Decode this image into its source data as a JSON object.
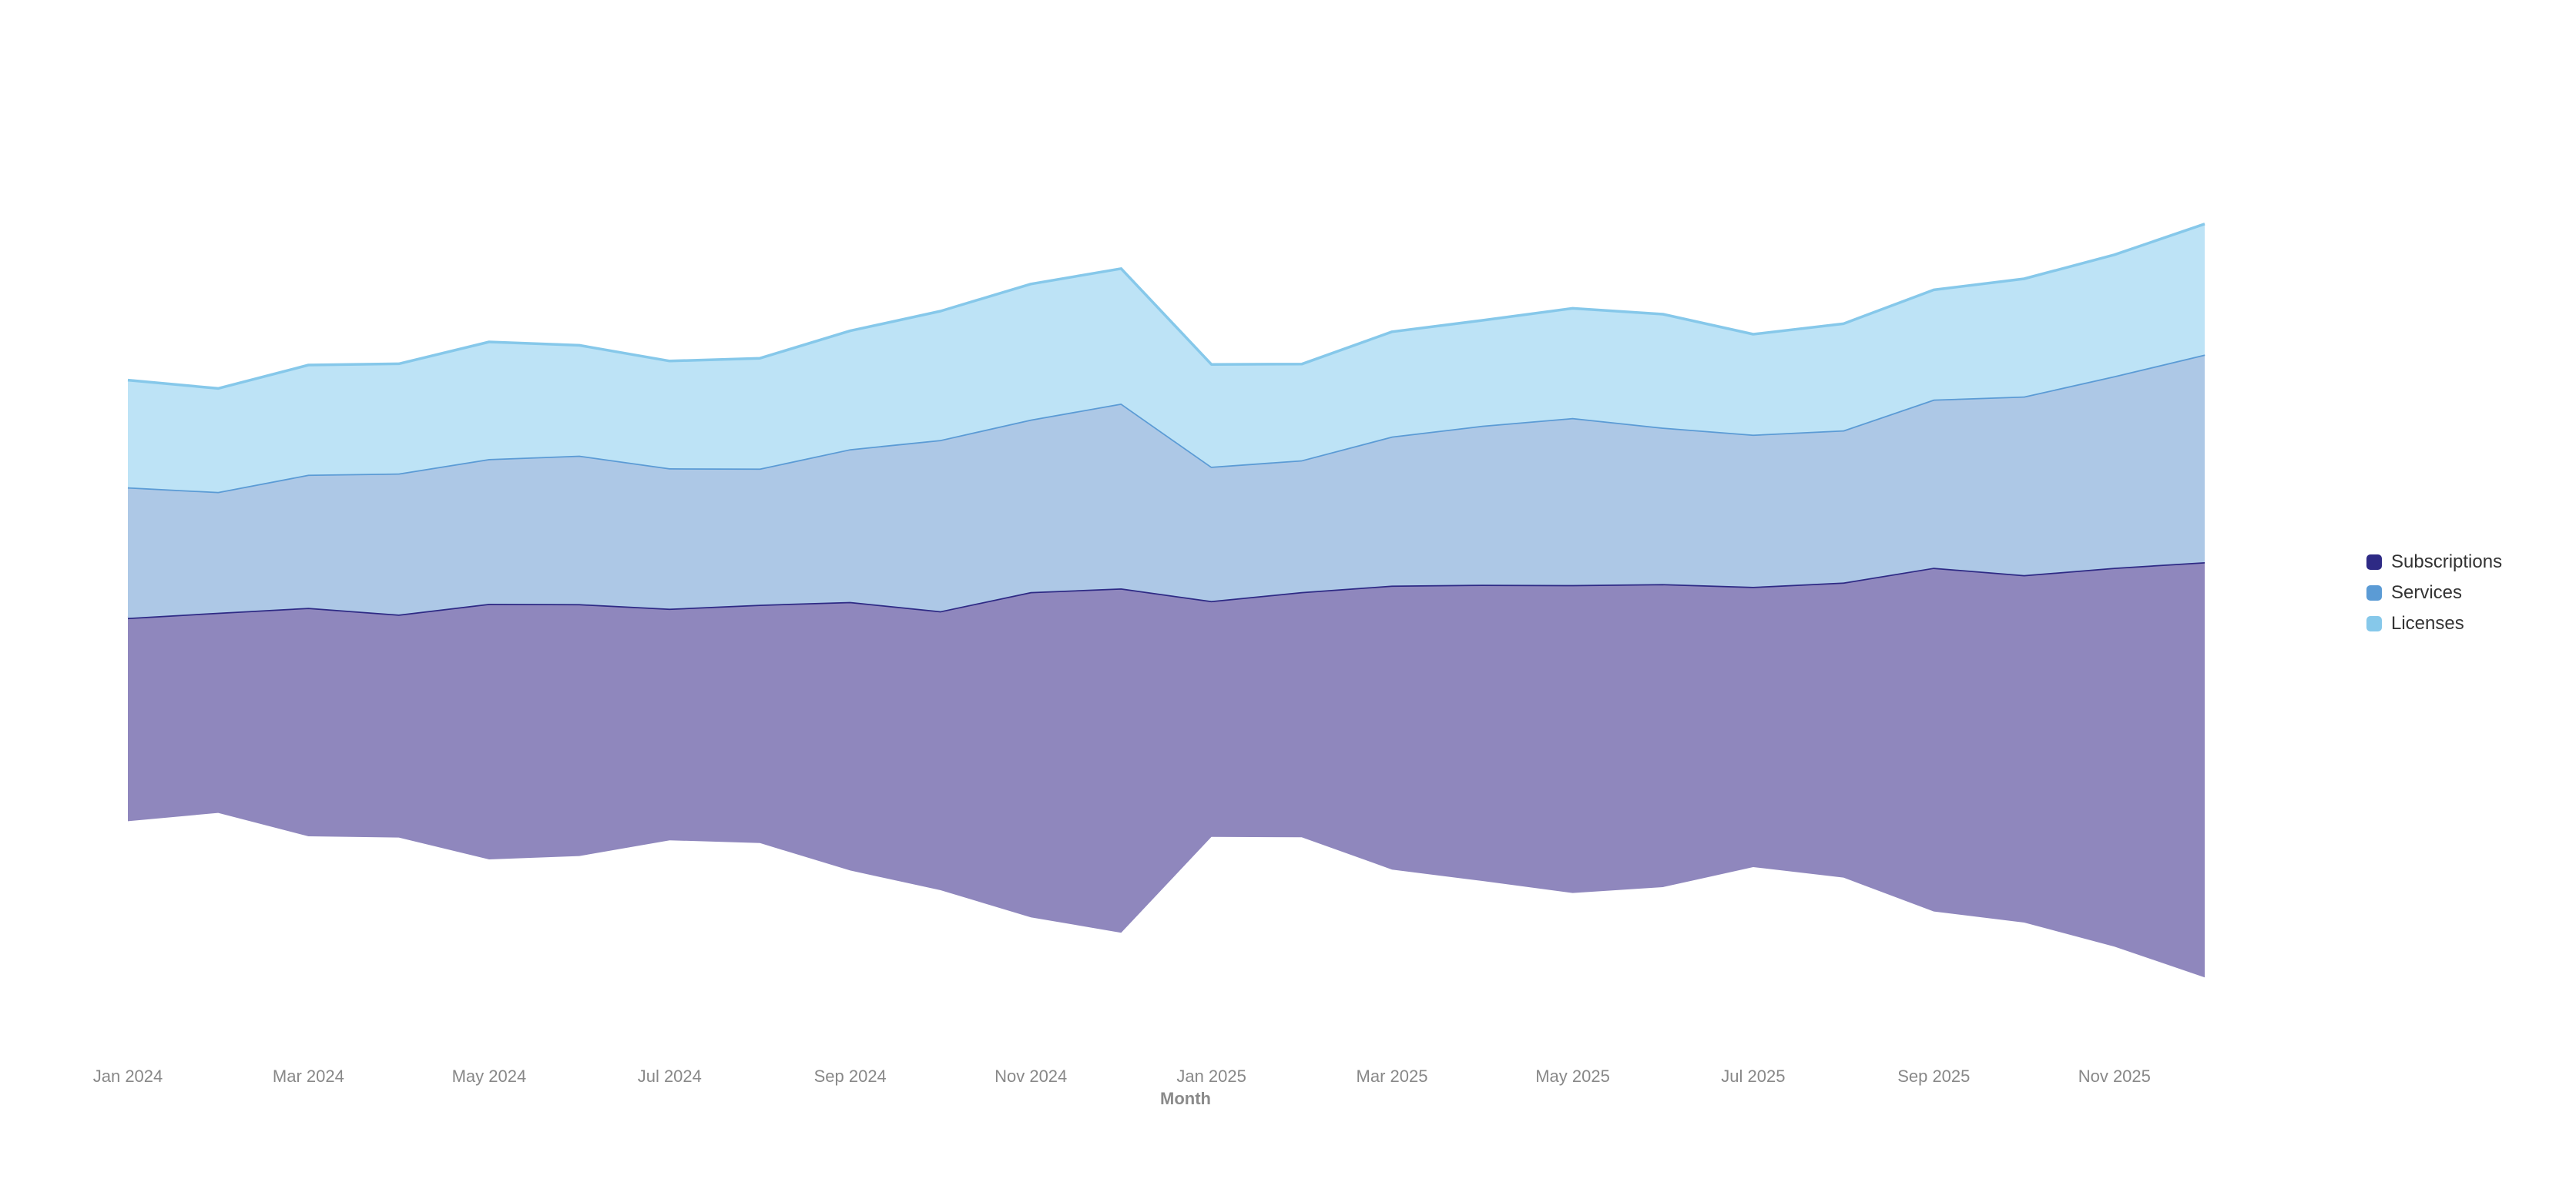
{
  "chart_data": {
    "type": "area",
    "subtype": "streamgraph",
    "x": [
      "Jan 2024",
      "Feb 2024",
      "Mar 2024",
      "Apr 2024",
      "May 2024",
      "Jun 2024",
      "Jul 2024",
      "Aug 2024",
      "Sep 2024",
      "Oct 2024",
      "Nov 2024",
      "Dec 2024",
      "Jan 2025",
      "Feb 2025",
      "Mar 2025",
      "Apr 2025",
      "May 2025",
      "Jun 2025",
      "Jul 2025",
      "Aug 2025",
      "Sep 2025",
      "Oct 2025",
      "Nov 2025",
      "Dec 2025"
    ],
    "x_tick_labels": [
      "Jan 2024",
      "Mar 2024",
      "May 2024",
      "Jul 2024",
      "Sep 2024",
      "Nov 2024",
      "Jan 2025",
      "Mar 2025",
      "May 2025",
      "Jul 2025",
      "Sep 2025",
      "Nov 2025"
    ],
    "xlabel": "Month",
    "ylabel": "",
    "series": [
      {
        "name": "Subscriptions",
        "color": "#2e2a85",
        "fill": "#8f87bd",
        "values": [
          330,
          325,
          371,
          362,
          415,
          409,
          376,
          387,
          436,
          453,
          528,
          559,
          383,
          398,
          461,
          481,
          500,
          492,
          455,
          479,
          558,
          564,
          615,
          674
        ]
      },
      {
        "name": "Services",
        "color": "#5b9bd5",
        "fill": "#adc8e6",
        "values": [
          212,
          196,
          216,
          229,
          235,
          241,
          228,
          221,
          248,
          278,
          280,
          300,
          218,
          214,
          242,
          258,
          271,
          254,
          247,
          247,
          273,
          290,
          311,
          337
        ]
      },
      {
        "name": "Licenses",
        "color": "#86c8ea",
        "fill": "#bde3f6",
        "values": [
          174,
          168,
          178,
          178,
          190,
          179,
          174,
          179,
          192,
          209,
          220,
          219,
          166,
          156,
          170,
          171,
          178,
          184,
          163,
          173,
          178,
          191,
          197,
          212
        ]
      }
    ],
    "grid": false,
    "legend_position": "right"
  }
}
